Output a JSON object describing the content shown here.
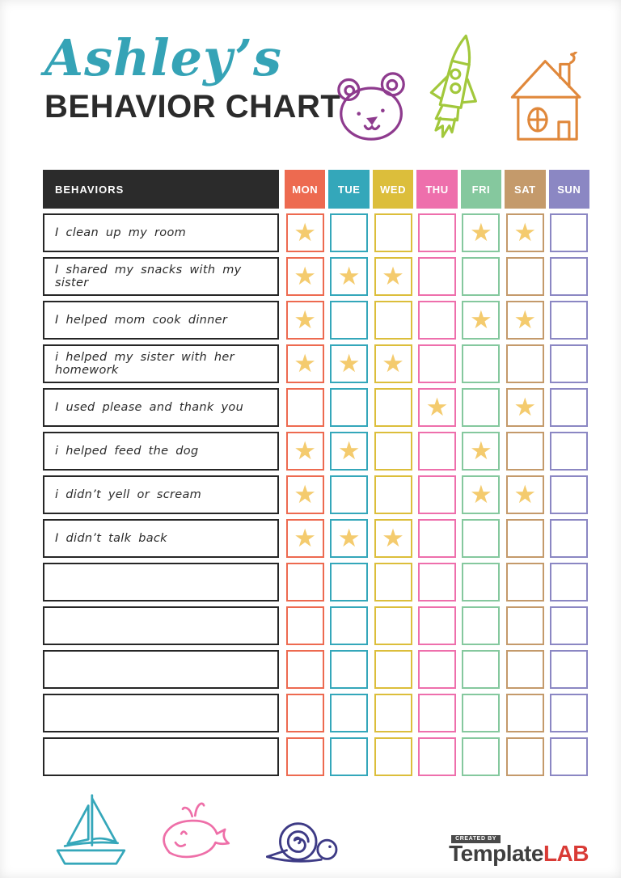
{
  "page": {
    "title_script": "Ashley’s",
    "title_main": "BEHAVIOR CHART"
  },
  "colors": {
    "title_accent": "#35A3B6",
    "table_header_bg": "#2B2B2B",
    "star": "#F4CB6E"
  },
  "table": {
    "behaviors_header": "BEHAVIORS",
    "days": [
      {
        "label": "MON",
        "color": "#ED6A50"
      },
      {
        "label": "TUE",
        "color": "#34A7BA"
      },
      {
        "label": "WED",
        "color": "#DCBE3B"
      },
      {
        "label": "THU",
        "color": "#EE6FAC"
      },
      {
        "label": "FRI",
        "color": "#85C89E"
      },
      {
        "label": "SAT",
        "color": "#C49A6B"
      },
      {
        "label": "SUN",
        "color": "#8B87C3"
      }
    ],
    "rows": [
      {
        "label": "I clean up my room",
        "stars": [
          1,
          0,
          0,
          0,
          1,
          1,
          0
        ]
      },
      {
        "label": "I shared my snacks with my sister",
        "stars": [
          1,
          1,
          1,
          0,
          0,
          0,
          0
        ]
      },
      {
        "label": "I helped mom cook dinner",
        "stars": [
          1,
          0,
          0,
          0,
          1,
          1,
          0
        ]
      },
      {
        "label": "i helped my sister with her homework",
        "stars": [
          1,
          1,
          1,
          0,
          0,
          0,
          0
        ]
      },
      {
        "label": "I used please and thank you",
        "stars": [
          0,
          0,
          0,
          1,
          0,
          1,
          0
        ]
      },
      {
        "label": "i helped feed the dog",
        "stars": [
          1,
          1,
          0,
          0,
          1,
          0,
          0
        ]
      },
      {
        "label": "i didn’t yell or scream",
        "stars": [
          1,
          0,
          0,
          0,
          1,
          1,
          0
        ]
      },
      {
        "label": "I didn’t talk back",
        "stars": [
          1,
          1,
          1,
          0,
          0,
          0,
          0
        ]
      },
      {
        "label": "",
        "stars": [
          0,
          0,
          0,
          0,
          0,
          0,
          0
        ]
      },
      {
        "label": "",
        "stars": [
          0,
          0,
          0,
          0,
          0,
          0,
          0
        ]
      },
      {
        "label": "",
        "stars": [
          0,
          0,
          0,
          0,
          0,
          0,
          0
        ]
      },
      {
        "label": "",
        "stars": [
          0,
          0,
          0,
          0,
          0,
          0,
          0
        ]
      },
      {
        "label": "",
        "stars": [
          0,
          0,
          0,
          0,
          0,
          0,
          0
        ]
      }
    ]
  },
  "decorations": {
    "top": [
      {
        "name": "bear-icon",
        "color": "#8E3B8E"
      },
      {
        "name": "rocket-icon",
        "color": "#A2C83C"
      },
      {
        "name": "house-icon",
        "color": "#E0883B"
      }
    ],
    "bottom": [
      {
        "name": "sailboat-icon",
        "color": "#35A7BA"
      },
      {
        "name": "whale-icon",
        "color": "#EE6FA8"
      },
      {
        "name": "snail-icon",
        "color": "#3D3A85"
      }
    ]
  },
  "footer": {
    "created_by": "CREATED BY",
    "brand_1": "Template",
    "brand_2": "LAB",
    "brand_color_1": "#3F3F3F",
    "brand_color_2": "#D93B36"
  }
}
